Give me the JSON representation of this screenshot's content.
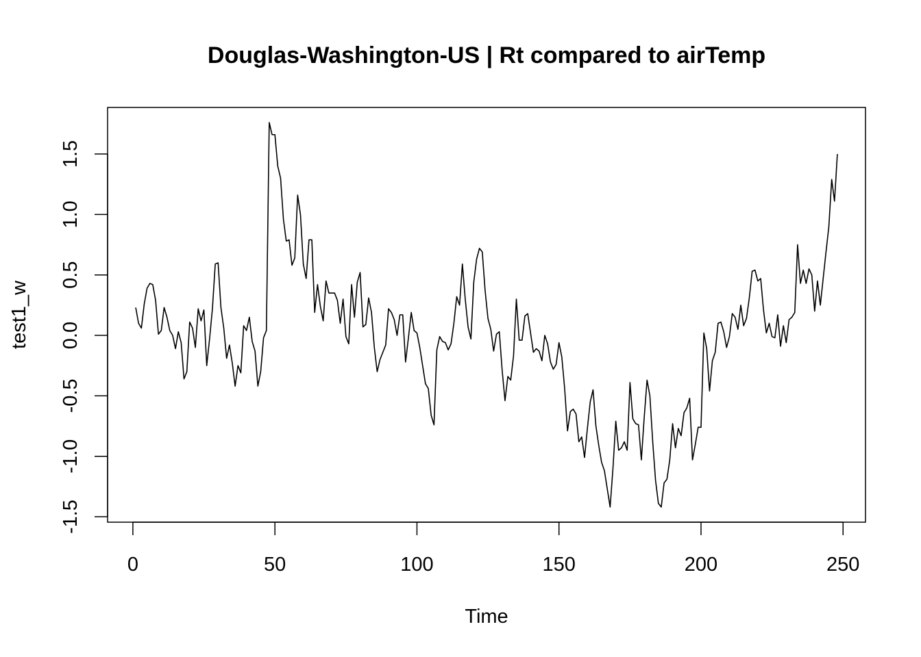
{
  "chart_data": {
    "type": "line",
    "title": "Douglas-Washington-US | Rt compared to airTemp",
    "xlabel": "Time",
    "ylabel": "test1_w",
    "xlim": [
      -8.9,
      257.9
    ],
    "ylim": [
      -1.545,
      1.885
    ],
    "x_ticks": [
      {
        "value": 0,
        "label": "0"
      },
      {
        "value": 50,
        "label": "50"
      },
      {
        "value": 100,
        "label": "100"
      },
      {
        "value": 150,
        "label": "150"
      },
      {
        "value": 200,
        "label": "200"
      },
      {
        "value": 250,
        "label": "250"
      }
    ],
    "y_ticks": [
      {
        "value": -1.5,
        "label": "-1.5"
      },
      {
        "value": -1.0,
        "label": "-1.0"
      },
      {
        "value": -0.5,
        "label": "-0.5"
      },
      {
        "value": 0.0,
        "label": "0.0"
      },
      {
        "value": 0.5,
        "label": "0.5"
      },
      {
        "value": 1.0,
        "label": "1.0"
      },
      {
        "value": 1.5,
        "label": "1.5"
      }
    ],
    "grid": false,
    "color": "#000000",
    "series": [
      {
        "x_start": 1,
        "values": [
          0.23,
          0.1,
          0.06,
          0.26,
          0.39,
          0.43,
          0.42,
          0.29,
          0.01,
          0.04,
          0.23,
          0.15,
          0.04,
          0.0,
          -0.11,
          0.03,
          -0.06,
          -0.36,
          -0.3,
          0.11,
          0.06,
          -0.1,
          0.22,
          0.12,
          0.21,
          -0.25,
          -0.03,
          0.22,
          0.59,
          0.6,
          0.23,
          0.06,
          -0.19,
          -0.08,
          -0.23,
          -0.42,
          -0.25,
          -0.31,
          0.08,
          0.04,
          0.15,
          -0.05,
          -0.13,
          -0.42,
          -0.3,
          -0.02,
          0.04,
          1.76,
          1.66,
          1.66,
          1.4,
          1.3,
          0.96,
          0.78,
          0.79,
          0.58,
          0.64,
          1.16,
          1.0,
          0.59,
          0.47,
          0.79,
          0.79,
          0.19,
          0.42,
          0.24,
          0.12,
          0.45,
          0.35,
          0.35,
          0.35,
          0.29,
          0.1,
          0.3,
          -0.01,
          -0.07,
          0.42,
          0.15,
          0.44,
          0.52,
          0.07,
          0.09,
          0.31,
          0.19,
          -0.1,
          -0.3,
          -0.2,
          -0.14,
          -0.08,
          0.22,
          0.19,
          0.13,
          0.0,
          0.17,
          0.17,
          -0.22,
          -0.02,
          0.19,
          0.04,
          0.02,
          -0.1,
          -0.25,
          -0.4,
          -0.44,
          -0.66,
          -0.74,
          -0.12,
          -0.01,
          -0.05,
          -0.06,
          -0.12,
          -0.07,
          0.1,
          0.32,
          0.25,
          0.59,
          0.3,
          0.07,
          -0.03,
          0.44,
          0.63,
          0.72,
          0.69,
          0.37,
          0.14,
          0.05,
          -0.13,
          0.01,
          0.03,
          -0.29,
          -0.54,
          -0.34,
          -0.37,
          -0.17,
          0.3,
          -0.04,
          -0.04,
          0.16,
          0.18,
          0.02,
          -0.14,
          -0.11,
          -0.13,
          -0.21,
          0.0,
          -0.07,
          -0.22,
          -0.28,
          -0.24,
          -0.06,
          -0.18,
          -0.44,
          -0.79,
          -0.63,
          -0.61,
          -0.65,
          -0.88,
          -0.84,
          -1.01,
          -0.77,
          -0.55,
          -0.45,
          -0.75,
          -0.91,
          -1.05,
          -1.12,
          -1.27,
          -1.42,
          -1.1,
          -0.71,
          -0.95,
          -0.93,
          -0.88,
          -0.95,
          -0.39,
          -0.69,
          -0.73,
          -0.74,
          -1.03,
          -0.68,
          -0.37,
          -0.5,
          -0.88,
          -1.2,
          -1.39,
          -1.42,
          -1.22,
          -1.19,
          -1.03,
          -0.73,
          -0.93,
          -0.77,
          -0.83,
          -0.64,
          -0.6,
          -0.52,
          -1.03,
          -0.9,
          -0.76,
          -0.76,
          0.02,
          -0.11,
          -0.46,
          -0.21,
          -0.14,
          0.1,
          0.11,
          0.03,
          -0.1,
          -0.01,
          0.18,
          0.15,
          0.05,
          0.25,
          0.08,
          0.14,
          0.31,
          0.53,
          0.54,
          0.45,
          0.47,
          0.21,
          0.02,
          0.1,
          -0.01,
          -0.02,
          0.17,
          -0.09,
          0.08,
          -0.06,
          0.13,
          0.15,
          0.19,
          0.75,
          0.43,
          0.54,
          0.43,
          0.55,
          0.5,
          0.2,
          0.45,
          0.25,
          0.47,
          0.69,
          0.9,
          1.29,
          1.11,
          1.5
        ]
      }
    ]
  }
}
